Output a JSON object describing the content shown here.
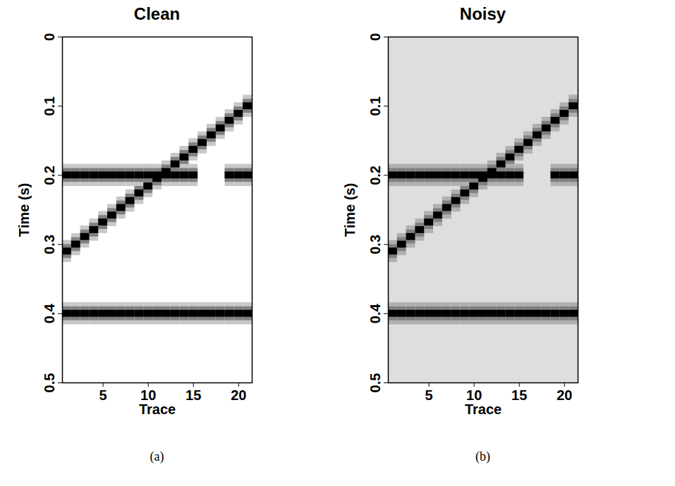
{
  "chart_data": [
    {
      "type": "seismic_section",
      "title": "Clean",
      "caption": "(a)",
      "x_label": "Trace",
      "y_label": "Time (s)",
      "x": [
        1,
        2,
        3,
        4,
        5,
        6,
        7,
        8,
        9,
        10,
        11,
        12,
        13,
        14,
        15,
        16,
        17,
        18,
        19,
        20,
        21
      ],
      "events": [
        [
          0.2,
          0.2,
          0.2,
          0.2,
          0.2,
          0.2,
          0.2,
          0.2,
          0.2,
          0.2,
          0.2,
          0.2,
          0.2,
          0.2,
          0.2,
          null,
          null,
          null,
          0.2,
          0.2,
          0.2
        ],
        [
          0.31,
          0.3,
          0.289,
          0.279,
          0.268,
          0.258,
          0.247,
          0.237,
          0.226,
          0.216,
          0.205,
          0.195,
          0.184,
          0.174,
          0.163,
          0.153,
          0.142,
          0.132,
          0.121,
          0.111,
          0.1
        ],
        [
          0.4,
          0.4,
          0.4,
          0.4,
          0.4,
          0.4,
          0.4,
          0.4,
          0.4,
          0.4,
          0.4,
          0.4,
          0.4,
          0.4,
          0.4,
          0.4,
          0.4,
          0.4,
          0.4,
          0.4,
          0.4
        ]
      ],
      "xlim": [
        0.5,
        21.5
      ],
      "xticks": [
        5,
        10,
        15,
        20
      ],
      "ylim": [
        0,
        0.5
      ],
      "yticks": [
        0,
        0.1,
        0.2,
        0.3,
        0.4,
        0.5
      ]
    },
    {
      "type": "seismic_section",
      "title": "Noisy",
      "caption": "(b)",
      "x_label": "Trace",
      "y_label": "Time (s)",
      "x": [
        1,
        2,
        3,
        4,
        5,
        6,
        7,
        8,
        9,
        10,
        11,
        12,
        13,
        14,
        15,
        16,
        17,
        18,
        19,
        20,
        21
      ],
      "events": [
        [
          0.2,
          0.2,
          0.2,
          0.2,
          0.2,
          0.2,
          0.2,
          0.2,
          0.2,
          0.2,
          0.2,
          0.2,
          0.2,
          0.2,
          0.2,
          null,
          null,
          null,
          0.2,
          0.2,
          0.2
        ],
        [
          0.31,
          0.3,
          0.289,
          0.279,
          0.268,
          0.258,
          0.247,
          0.237,
          0.226,
          0.216,
          0.205,
          0.195,
          0.184,
          0.174,
          0.163,
          0.153,
          0.142,
          0.132,
          0.121,
          0.111,
          0.1
        ],
        [
          0.4,
          0.4,
          0.4,
          0.4,
          0.4,
          0.4,
          0.4,
          0.4,
          0.4,
          0.4,
          0.4,
          0.4,
          0.4,
          0.4,
          0.4,
          0.4,
          0.4,
          0.4,
          0.4,
          0.4,
          0.4
        ]
      ],
      "xlim": [
        0.5,
        21.5
      ],
      "xticks": [
        5,
        10,
        15,
        20
      ],
      "ylim": [
        0,
        0.5
      ],
      "yticks": [
        0,
        0.1,
        0.2,
        0.3,
        0.4,
        0.5
      ]
    }
  ]
}
